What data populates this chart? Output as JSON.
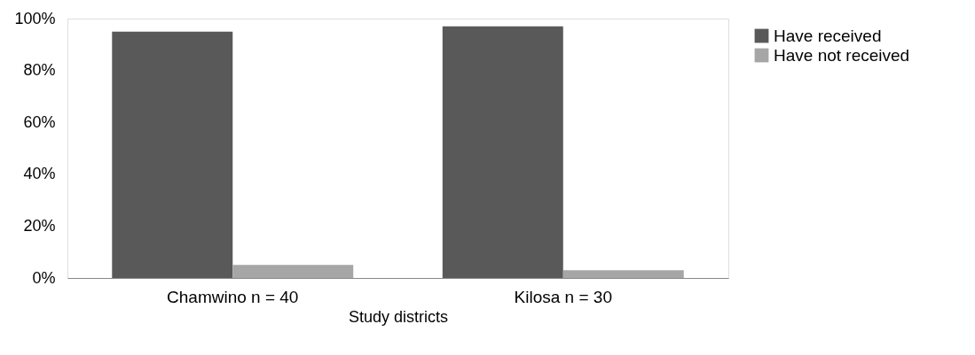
{
  "chart_data": {
    "type": "bar",
    "xlabel": "Study districts",
    "categories": [
      "Chamwino n = 40",
      "Kilosa n = 30"
    ],
    "series": [
      {
        "name": "Have received",
        "color": "#595959",
        "values": [
          95,
          97
        ]
      },
      {
        "name": "Have not received",
        "color": "#a6a6a6",
        "values": [
          5,
          3
        ]
      }
    ],
    "ylim": [
      0,
      100
    ],
    "yticks": [
      {
        "value": 0,
        "label": "0%"
      },
      {
        "value": 20,
        "label": "20%"
      },
      {
        "value": 40,
        "label": "40%"
      },
      {
        "value": 60,
        "label": "60%"
      },
      {
        "value": 80,
        "label": "80%"
      },
      {
        "value": 100,
        "label": "100%"
      }
    ],
    "grid": false,
    "legend": "right"
  }
}
